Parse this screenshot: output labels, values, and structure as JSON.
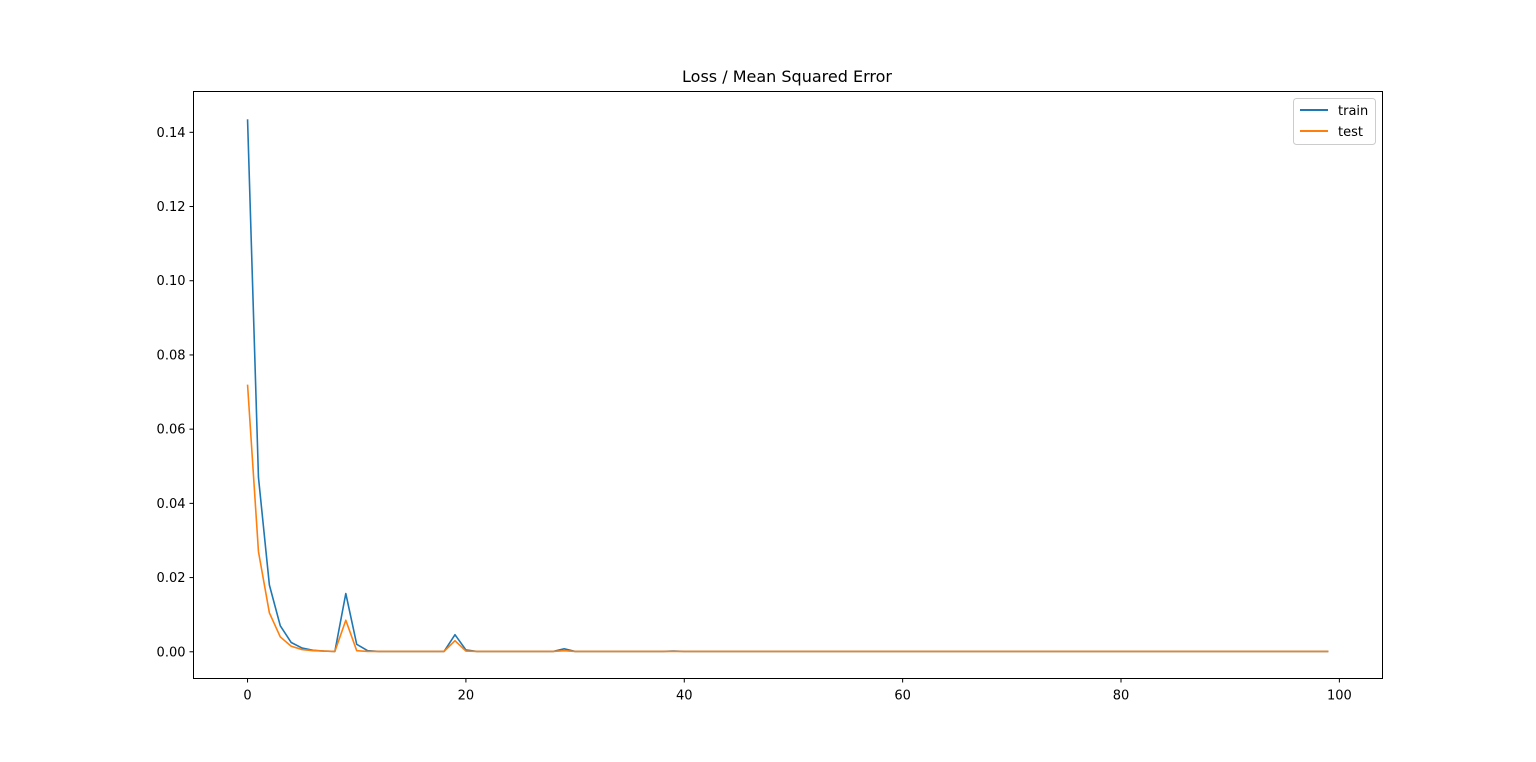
{
  "chart_data": {
    "type": "line",
    "title": "Loss / Mean Squared Error",
    "xlabel": "",
    "ylabel": "",
    "xlim": [
      -4.95,
      103.95
    ],
    "ylim": [
      -0.0072,
      0.151
    ],
    "x_ticks": [
      0,
      20,
      40,
      60,
      80,
      100
    ],
    "x_tick_labels": [
      "0",
      "20",
      "40",
      "60",
      "80",
      "100"
    ],
    "y_ticks": [
      0.0,
      0.02,
      0.04,
      0.06,
      0.08,
      0.1,
      0.12,
      0.14
    ],
    "y_tick_labels": [
      "0.00",
      "0.02",
      "0.04",
      "0.06",
      "0.08",
      "0.10",
      "0.12",
      "0.14"
    ],
    "grid": false,
    "legend": {
      "placement": "top-right",
      "entries": [
        "train",
        "test"
      ]
    },
    "series": [
      {
        "name": "train",
        "color": "#1f77b4",
        "values": [
          0.1435,
          0.047,
          0.018,
          0.007,
          0.0025,
          0.001,
          0.0004,
          0.0002,
          0.0001,
          0.0157,
          0.002,
          0.0003,
          0.0001,
          0.0001,
          0.0001,
          0.0001,
          0.0001,
          0.0001,
          0.0001,
          0.0046,
          0.0005,
          0.0001,
          0.0001,
          0.0001,
          0.0001,
          0.0001,
          0.0001,
          0.0001,
          0.0001,
          0.0008,
          0.0001,
          0.0001,
          0.0001,
          0.0001,
          0.0001,
          0.0001,
          0.0001,
          0.0001,
          0.0001,
          0.0002,
          0.0001,
          0.0001,
          0.0001,
          0.0001,
          0.0001,
          0.0001,
          0.0001,
          0.0001,
          0.0001,
          0.0001,
          0.0001,
          0.0001,
          0.0001,
          0.0001,
          0.0001,
          0.0001,
          0.0001,
          0.0001,
          0.0001,
          0.0001,
          0.0001,
          0.0001,
          0.0001,
          0.0001,
          0.0001,
          0.0001,
          0.0001,
          0.0001,
          0.0001,
          0.0001,
          0.0001,
          0.0001,
          0.0001,
          0.0001,
          0.0001,
          0.0001,
          0.0001,
          0.0001,
          0.0001,
          0.0001,
          0.0001,
          0.0001,
          0.0001,
          0.0001,
          0.0001,
          0.0001,
          0.0001,
          0.0001,
          0.0001,
          0.0001,
          0.0001,
          0.0001,
          0.0001,
          0.0001,
          0.0001,
          0.0001,
          0.0001,
          0.0001,
          0.0001,
          0.0001
        ]
      },
      {
        "name": "test",
        "color": "#ff7f0e",
        "values": [
          0.072,
          0.027,
          0.0105,
          0.004,
          0.0015,
          0.0006,
          0.0003,
          0.0002,
          0.0001,
          0.0085,
          0.0003,
          0.0001,
          0.0001,
          0.0001,
          0.0001,
          0.0001,
          0.0001,
          0.0001,
          0.0001,
          0.003,
          0.0002,
          0.0001,
          0.0001,
          0.0001,
          0.0001,
          0.0001,
          0.0001,
          0.0001,
          0.0001,
          0.0003,
          0.0001,
          0.0001,
          0.0001,
          0.0001,
          0.0001,
          0.0001,
          0.0001,
          0.0001,
          0.0001,
          0.0001,
          0.0001,
          0.0001,
          0.0001,
          0.0001,
          0.0001,
          0.0001,
          0.0001,
          0.0001,
          0.0001,
          0.0001,
          0.0001,
          0.0001,
          0.0001,
          0.0001,
          0.0001,
          0.0001,
          0.0001,
          0.0001,
          0.0001,
          0.0001,
          0.0001,
          0.0001,
          0.0001,
          0.0001,
          0.0001,
          0.0001,
          0.0001,
          0.0001,
          0.0001,
          0.0001,
          0.0001,
          0.0001,
          0.0001,
          0.0001,
          0.0001,
          0.0001,
          0.0001,
          0.0001,
          0.0001,
          0.0001,
          0.0001,
          0.0001,
          0.0001,
          0.0001,
          0.0001,
          0.0001,
          0.0001,
          0.0001,
          0.0001,
          0.0001,
          0.0001,
          0.0001,
          0.0001,
          0.0001,
          0.0001,
          0.0001,
          0.0001,
          0.0001,
          0.0001,
          0.0001
        ]
      }
    ]
  }
}
